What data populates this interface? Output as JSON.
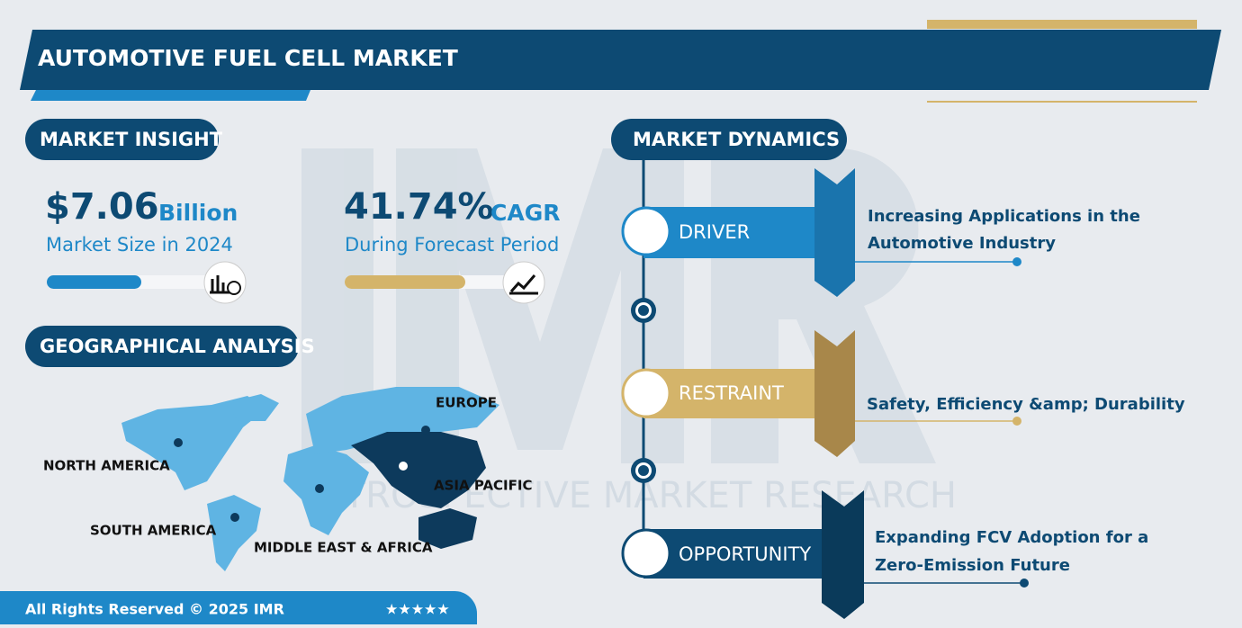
{
  "header": {
    "title": "AUTOMOTIVE FUEL CELL MARKET"
  },
  "market_insight": {
    "heading": "MARKET INSIGHT",
    "size_value": "$7.06",
    "size_unit": "Billion",
    "size_label": "Market Size in 2024",
    "cagr_value": "41.74%",
    "cagr_unit": "CAGR",
    "cagr_label": "During Forecast Period"
  },
  "geographical_analysis": {
    "heading": "GEOGRAPHICAL ANALYSIS",
    "regions": [
      "NORTH AMERICA",
      "SOUTH AMERICA",
      "EUROPE",
      "ASIA PACIFIC",
      "MIDDLE EAST & AFRICA"
    ]
  },
  "market_dynamics": {
    "heading": "MARKET DYNAMICS",
    "items": [
      {
        "label": "DRIVER",
        "text_lines": [
          "Increasing Applications in the",
          "Automotive Industry"
        ]
      },
      {
        "label": "RESTRAINT",
        "text_lines": [
          "Safety, Efficiency &amp; Durability"
        ]
      },
      {
        "label": "OPPORTUNITY",
        "text_lines": [
          "Expanding FCV Adoption for a",
          "Zero-Emission Future"
        ]
      }
    ]
  },
  "watermark": "INTROSPECTIVE MARKET RESEARCH",
  "footer": {
    "copyright": "All Rights Reserved © 2025 IMR",
    "rating": "★★★★★"
  }
}
